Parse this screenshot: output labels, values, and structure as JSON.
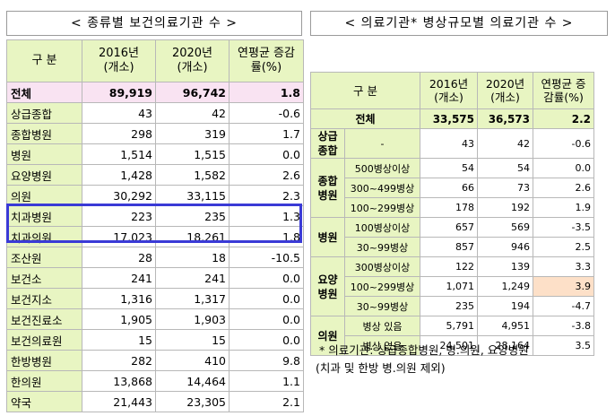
{
  "left": {
    "title": "< 종류별 보건의료기관 수 >",
    "headers": [
      "구 분",
      "2016년\n(개소)",
      "2020년\n(개소)",
      "연평균 증감\n률(%)"
    ],
    "rows": [
      {
        "label": "전체",
        "v2016": "89,919",
        "v2020": "96,742",
        "rate": "1.8",
        "total": true
      },
      {
        "label": "상급종합",
        "v2016": "43",
        "v2020": "42",
        "rate": "-0.6"
      },
      {
        "label": "종합병원",
        "v2016": "298",
        "v2020": "319",
        "rate": "1.7"
      },
      {
        "label": "병원",
        "v2016": "1,514",
        "v2020": "1,515",
        "rate": "0.0"
      },
      {
        "label": "요양병원",
        "v2016": "1,428",
        "v2020": "1,582",
        "rate": "2.6"
      },
      {
        "label": "의원",
        "v2016": "30,292",
        "v2020": "33,115",
        "rate": "2.3"
      },
      {
        "label": "치과병원",
        "v2016": "223",
        "v2020": "235",
        "rate": "1.3"
      },
      {
        "label": "치과의원",
        "v2016": "17,023",
        "v2020": "18,261",
        "rate": "1.8"
      },
      {
        "label": "조산원",
        "v2016": "28",
        "v2020": "18",
        "rate": "-10.5"
      },
      {
        "label": "보건소",
        "v2016": "241",
        "v2020": "241",
        "rate": "0.0"
      },
      {
        "label": "보건지소",
        "v2016": "1,316",
        "v2020": "1,317",
        "rate": "0.0"
      },
      {
        "label": "보건진료소",
        "v2016": "1,905",
        "v2020": "1,903",
        "rate": "0.0"
      },
      {
        "label": "보건의료원",
        "v2016": "15",
        "v2020": "15",
        "rate": "0.0"
      },
      {
        "label": "한방병원",
        "v2016": "282",
        "v2020": "410",
        "rate": "9.8"
      },
      {
        "label": "한의원",
        "v2016": "13,868",
        "v2020": "14,464",
        "rate": "1.1"
      },
      {
        "label": "약국",
        "v2016": "21,443",
        "v2020": "23,305",
        "rate": "2.1"
      }
    ]
  },
  "right": {
    "title": "< 의료기관* 병상규모별 의료기관 수 >",
    "headers": [
      "구 분",
      "2016년\n(개소)",
      "2020년\n(개소)",
      "연평균 증\n감률(%)"
    ],
    "total": {
      "label": "전체",
      "v2016": "33,575",
      "v2020": "36,573",
      "rate": "2.2"
    },
    "groups": [
      {
        "label": "상급\n종합",
        "rows": [
          {
            "sub": "-",
            "v2016": "43",
            "v2020": "42",
            "rate": "-0.6"
          }
        ]
      },
      {
        "label": "종합\n병원",
        "rows": [
          {
            "sub": "500병상이상",
            "v2016": "54",
            "v2020": "54",
            "rate": "0.0"
          },
          {
            "sub": "300~499병상",
            "v2016": "66",
            "v2020": "73",
            "rate": "2.6"
          },
          {
            "sub": "100~299병상",
            "v2016": "178",
            "v2020": "192",
            "rate": "1.9"
          }
        ]
      },
      {
        "label": "병원",
        "rows": [
          {
            "sub": "100병상이상",
            "v2016": "657",
            "v2020": "569",
            "rate": "-3.5"
          },
          {
            "sub": "30~99병상",
            "v2016": "857",
            "v2020": "946",
            "rate": "2.5"
          }
        ]
      },
      {
        "label": "요양\n병원",
        "rows": [
          {
            "sub": "300병상이상",
            "v2016": "122",
            "v2020": "139",
            "rate": "3.3"
          },
          {
            "sub": "100~299병상",
            "v2016": "1,071",
            "v2020": "1,249",
            "rate": "3.9",
            "highlight": true
          },
          {
            "sub": "30~99병상",
            "v2016": "235",
            "v2020": "194",
            "rate": "-4.7"
          }
        ]
      },
      {
        "label": "의원",
        "rows": [
          {
            "sub": "병상 있음",
            "v2016": "5,791",
            "v2020": "4,951",
            "rate": "-3.8"
          },
          {
            "sub": "병상 없음",
            "v2016": "24,501",
            "v2020": "28,164",
            "rate": "3.5"
          }
        ]
      }
    ],
    "note_line1": "* 의료기관: 상급종합병원, 병.의원, 요양병원",
    "note_line2": "(치과 및 한방 병.의원 제외)"
  },
  "colors": {
    "header_bg": "#e8f5c2",
    "total_bg": "#f9e3f2",
    "highlight_box": "#3a3ad6",
    "cell_highlight": "#fde0c8"
  }
}
